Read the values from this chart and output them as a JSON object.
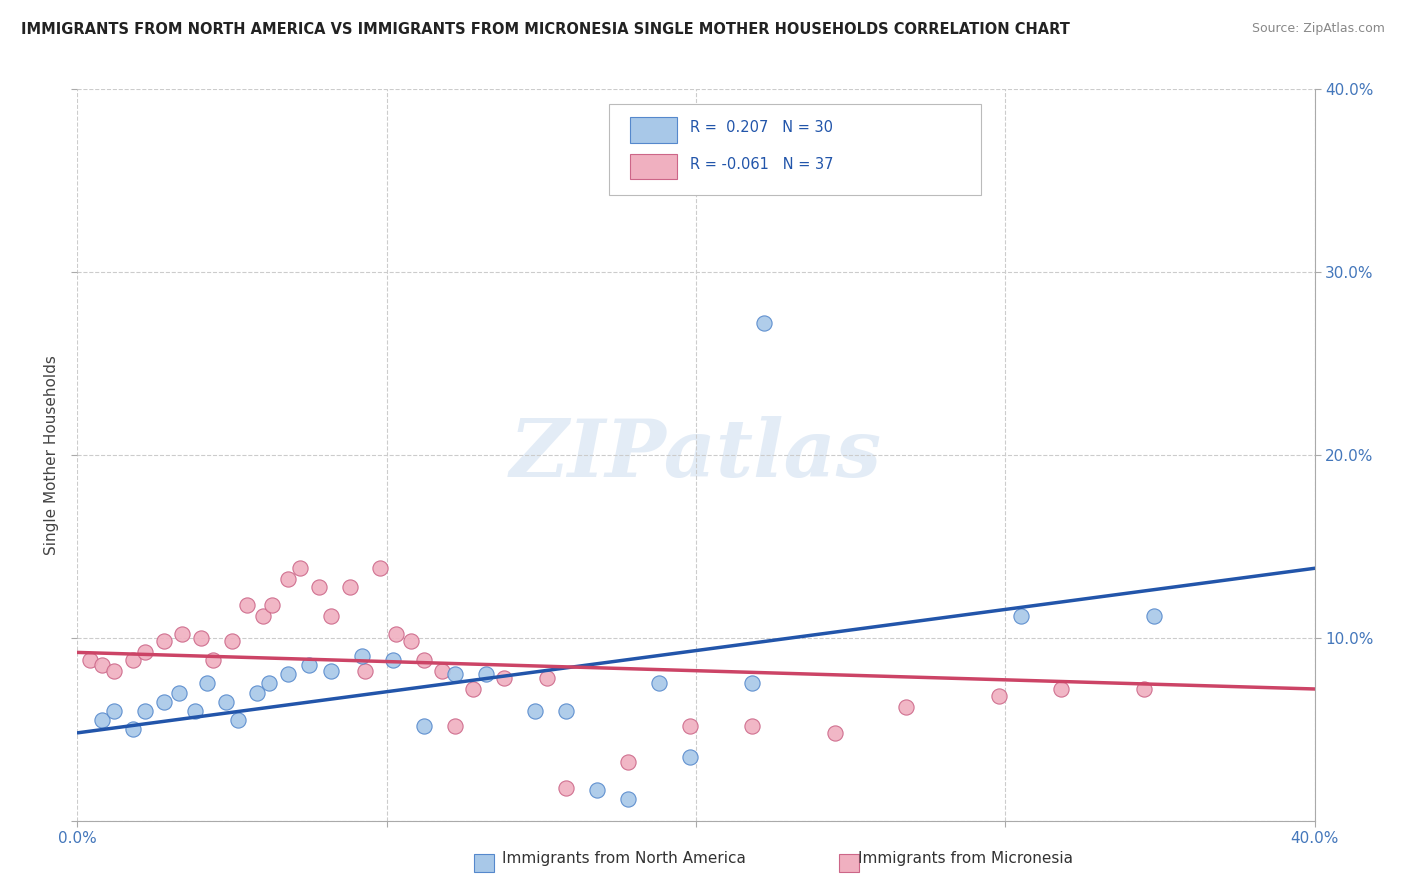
{
  "title": "IMMIGRANTS FROM NORTH AMERICA VS IMMIGRANTS FROM MICRONESIA SINGLE MOTHER HOUSEHOLDS CORRELATION CHART",
  "source": "Source: ZipAtlas.com",
  "ylabel": "Single Mother Households",
  "xmin": 0.0,
  "xmax": 0.4,
  "ymin": 0.0,
  "ymax": 0.4,
  "watermark_text": "ZIPatlas",
  "legend_label1": "Immigrants from North America",
  "legend_label2": "Immigrants from Micronesia",
  "blue_color": "#a8c8e8",
  "blue_edge_color": "#5588cc",
  "blue_line_color": "#2255aa",
  "pink_color": "#f0b0c0",
  "pink_edge_color": "#cc6688",
  "pink_line_color": "#cc4466",
  "blue_scatter": [
    [
      0.008,
      0.055
    ],
    [
      0.012,
      0.06
    ],
    [
      0.018,
      0.05
    ],
    [
      0.022,
      0.06
    ],
    [
      0.028,
      0.065
    ],
    [
      0.033,
      0.07
    ],
    [
      0.038,
      0.06
    ],
    [
      0.042,
      0.075
    ],
    [
      0.048,
      0.065
    ],
    [
      0.052,
      0.055
    ],
    [
      0.058,
      0.07
    ],
    [
      0.062,
      0.075
    ],
    [
      0.068,
      0.08
    ],
    [
      0.075,
      0.085
    ],
    [
      0.082,
      0.082
    ],
    [
      0.092,
      0.09
    ],
    [
      0.102,
      0.088
    ],
    [
      0.112,
      0.052
    ],
    [
      0.122,
      0.08
    ],
    [
      0.132,
      0.08
    ],
    [
      0.148,
      0.06
    ],
    [
      0.158,
      0.06
    ],
    [
      0.168,
      0.017
    ],
    [
      0.178,
      0.012
    ],
    [
      0.188,
      0.075
    ],
    [
      0.198,
      0.035
    ],
    [
      0.218,
      0.075
    ],
    [
      0.222,
      0.272
    ],
    [
      0.305,
      0.112
    ],
    [
      0.348,
      0.112
    ]
  ],
  "pink_scatter": [
    [
      0.004,
      0.088
    ],
    [
      0.008,
      0.085
    ],
    [
      0.012,
      0.082
    ],
    [
      0.018,
      0.088
    ],
    [
      0.022,
      0.092
    ],
    [
      0.028,
      0.098
    ],
    [
      0.034,
      0.102
    ],
    [
      0.04,
      0.1
    ],
    [
      0.044,
      0.088
    ],
    [
      0.05,
      0.098
    ],
    [
      0.055,
      0.118
    ],
    [
      0.06,
      0.112
    ],
    [
      0.063,
      0.118
    ],
    [
      0.068,
      0.132
    ],
    [
      0.072,
      0.138
    ],
    [
      0.078,
      0.128
    ],
    [
      0.082,
      0.112
    ],
    [
      0.088,
      0.128
    ],
    [
      0.093,
      0.082
    ],
    [
      0.098,
      0.138
    ],
    [
      0.103,
      0.102
    ],
    [
      0.108,
      0.098
    ],
    [
      0.112,
      0.088
    ],
    [
      0.118,
      0.082
    ],
    [
      0.122,
      0.052
    ],
    [
      0.128,
      0.072
    ],
    [
      0.138,
      0.078
    ],
    [
      0.152,
      0.078
    ],
    [
      0.158,
      0.018
    ],
    [
      0.178,
      0.032
    ],
    [
      0.198,
      0.052
    ],
    [
      0.218,
      0.052
    ],
    [
      0.245,
      0.048
    ],
    [
      0.268,
      0.062
    ],
    [
      0.298,
      0.068
    ],
    [
      0.318,
      0.072
    ],
    [
      0.345,
      0.072
    ]
  ],
  "blue_line_x": [
    0.0,
    0.4
  ],
  "blue_line_y": [
    0.048,
    0.138
  ],
  "pink_line_x": [
    0.0,
    0.4
  ],
  "pink_line_y": [
    0.092,
    0.072
  ]
}
